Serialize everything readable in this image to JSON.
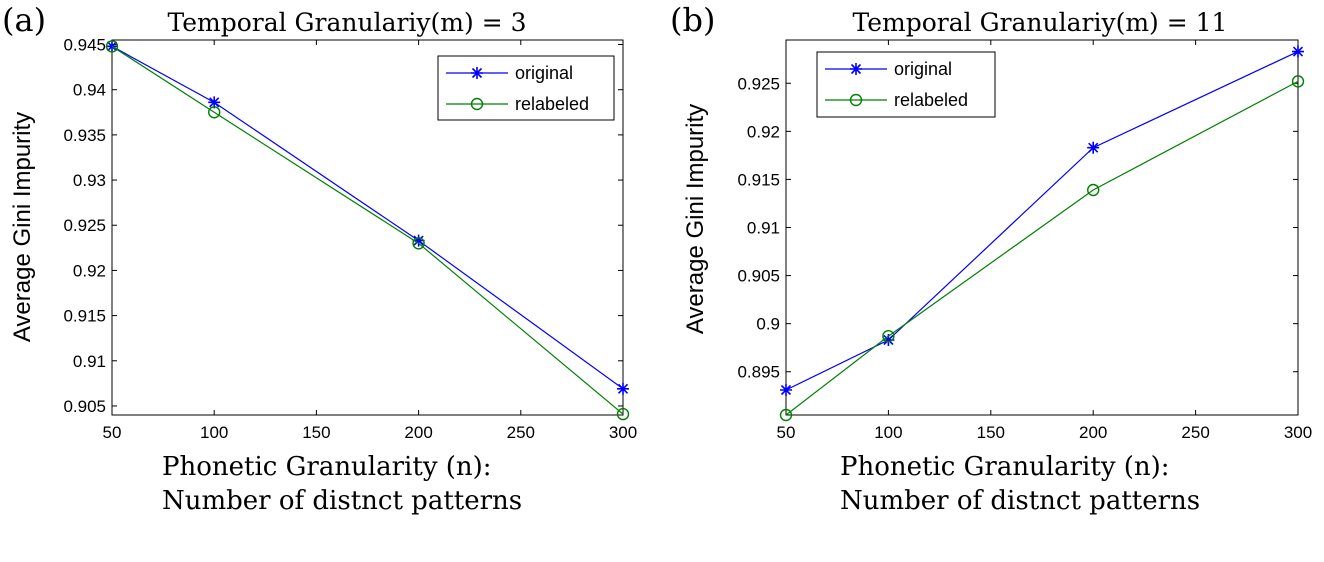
{
  "chart_data": [
    {
      "type": "line",
      "panel_label": "(a)",
      "title": "Temporal Granulariy(m) = 3",
      "xlabel_line1": "Phonetic Granularity (n):",
      "xlabel_line2": "Number of distnct patterns",
      "ylabel": "Average Gini Impurity",
      "x": [
        50,
        100,
        200,
        300
      ],
      "xlim": [
        50,
        300
      ],
      "ylim": [
        0.904,
        0.9455
      ],
      "xticks": [
        "50",
        "100",
        "150",
        "200",
        "250",
        "300"
      ],
      "yticks": [
        "0.905",
        "0.91",
        "0.915",
        "0.92",
        "0.925",
        "0.93",
        "0.935",
        "0.94",
        "0.945"
      ],
      "legend": "top-right",
      "series": [
        {
          "name": "original",
          "color": "#0000ff",
          "marker": "asterisk",
          "values": [
            0.9448,
            0.9386,
            0.9233,
            0.9069
          ]
        },
        {
          "name": "relabeled",
          "color": "#008000",
          "marker": "circle",
          "values": [
            0.9448,
            0.9375,
            0.923,
            0.9041
          ]
        }
      ]
    },
    {
      "type": "line",
      "panel_label": "(b)",
      "title": "Temporal Granulariy(m) = 11",
      "xlabel_line1": "Phonetic Granularity (n):",
      "xlabel_line2": "Number of distnct patterns",
      "ylabel": "Average Gini Impurity",
      "x": [
        50,
        100,
        200,
        300
      ],
      "xlim": [
        50,
        300
      ],
      "ylim": [
        0.8905,
        0.9295
      ],
      "xticks": [
        "50",
        "100",
        "150",
        "200",
        "250",
        "300"
      ],
      "yticks": [
        "0.895",
        "0.9",
        "0.905",
        "0.91",
        "0.915",
        "0.92",
        "0.925"
      ],
      "legend": "top-left",
      "series": [
        {
          "name": "original",
          "color": "#0000ff",
          "marker": "asterisk",
          "values": [
            0.8931,
            0.8983,
            0.9183,
            0.9283
          ]
        },
        {
          "name": "relabeled",
          "color": "#008000",
          "marker": "circle",
          "values": [
            0.8905,
            0.8987,
            0.9139,
            0.9252
          ]
        }
      ]
    }
  ]
}
